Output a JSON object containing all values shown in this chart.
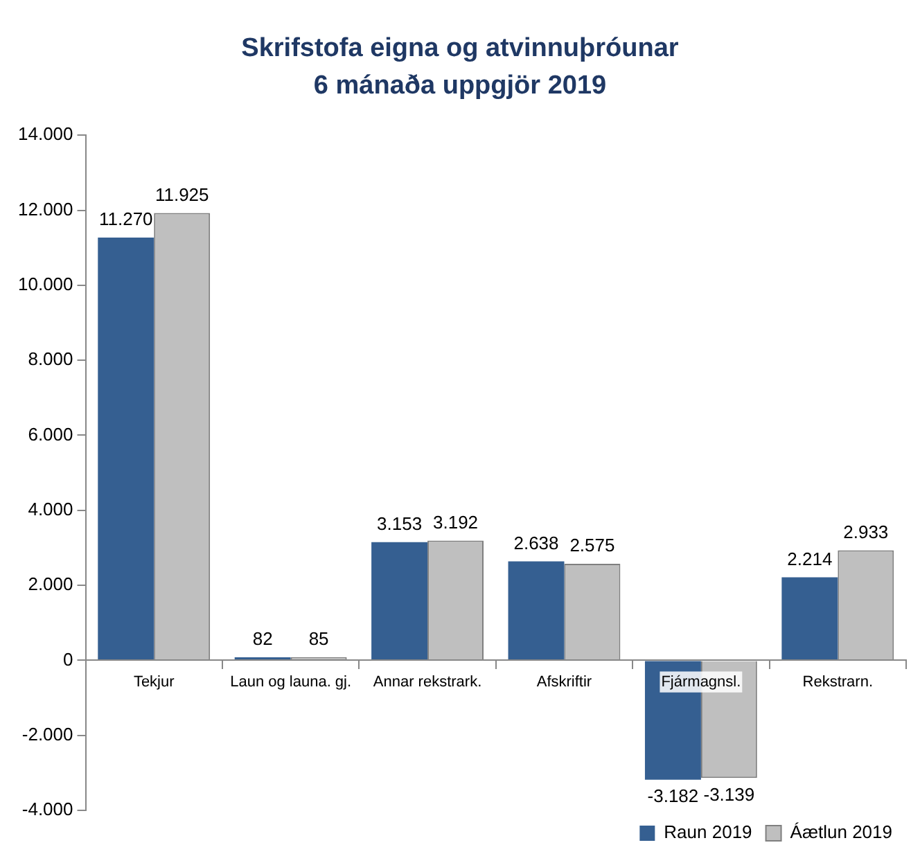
{
  "chart_data": {
    "type": "bar",
    "title": "Skrifstofa eigna og atvinnuþróunar",
    "subtitle": "6 mánaða uppgjör 2019",
    "categories": [
      "Tekjur",
      "Laun og launa. gj.",
      "Annar rekstrark.",
      "Afskriftir",
      "Fjármagnsl.",
      "Rekstrarn."
    ],
    "series": [
      {
        "name": "Raun 2019",
        "color": "#355f91",
        "values": [
          11270,
          82,
          3153,
          2638,
          -3182,
          2214
        ],
        "value_labels": [
          "11.270",
          "82",
          "3.153",
          "2.638",
          "-3.182",
          "2.214"
        ]
      },
      {
        "name": "Áætlun 2019",
        "color": "#bfbfbf",
        "values": [
          11925,
          85,
          3192,
          2575,
          -3139,
          2933
        ],
        "value_labels": [
          "11.925",
          "85",
          "3.192",
          "2.575",
          "-3.139",
          "2.933"
        ]
      }
    ],
    "ylim": [
      -4000,
      14000
    ],
    "yticks": [
      {
        "value": -4000,
        "label": "-4.000"
      },
      {
        "value": -2000,
        "label": "-2.000"
      },
      {
        "value": 0,
        "label": "0"
      },
      {
        "value": 2000,
        "label": "2.000"
      },
      {
        "value": 4000,
        "label": "4.000"
      },
      {
        "value": 6000,
        "label": "6.000"
      },
      {
        "value": 8000,
        "label": "8.000"
      },
      {
        "value": 10000,
        "label": "10.000"
      },
      {
        "value": 12000,
        "label": "12.000"
      },
      {
        "value": 14000,
        "label": "14.000"
      }
    ],
    "grid": false,
    "legend": "bottom right"
  }
}
